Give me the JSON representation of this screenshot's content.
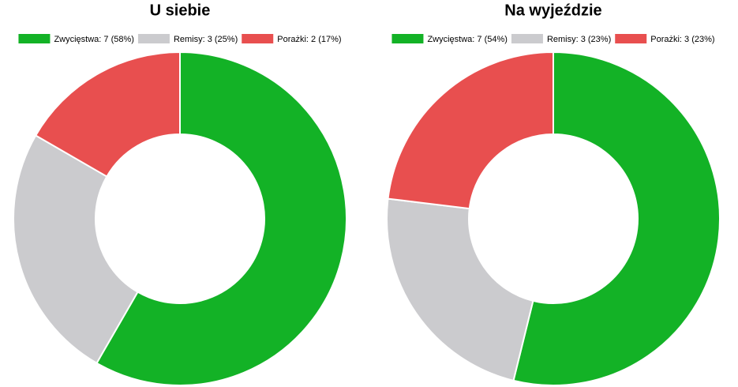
{
  "chart_data": [
    {
      "type": "doughnut",
      "title": "U siebie",
      "categories": [
        "Zwycięstwa: 7 (58%)",
        "Remisy: 3 (25%)",
        "Porażki: 2 (17%)"
      ],
      "values": [
        7,
        3,
        2
      ],
      "colors": [
        "#13b226",
        "#cbcbce",
        "#e84f4f"
      ]
    },
    {
      "type": "doughnut",
      "title": "Na wyjeździe",
      "categories": [
        "Zwycięstwa: 7 (54%)",
        "Remisy: 3 (23%)",
        "Porażki: 3 (23%)"
      ],
      "values": [
        7,
        3,
        3
      ],
      "colors": [
        "#13b226",
        "#cbcbce",
        "#e84f4f"
      ]
    }
  ]
}
